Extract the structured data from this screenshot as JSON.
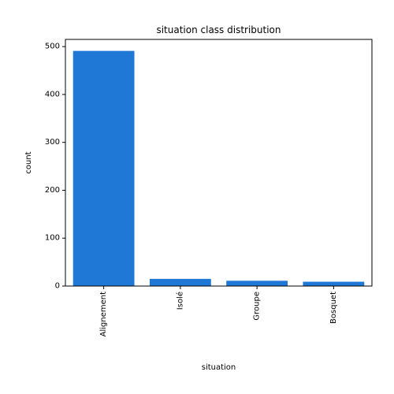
{
  "chart_data": {
    "type": "bar",
    "title": "situation class distribution",
    "xlabel": "situation",
    "ylabel": "count",
    "categories": [
      "Alignement",
      "Isolé",
      "Groupe",
      "Bosquet"
    ],
    "values": [
      491,
      15,
      11,
      9
    ],
    "ylim": [
      0,
      515
    ],
    "yticks": [
      0,
      100,
      200,
      300,
      400,
      500
    ],
    "bar_color": "#1f77d6",
    "grid": false,
    "legend": "none"
  }
}
